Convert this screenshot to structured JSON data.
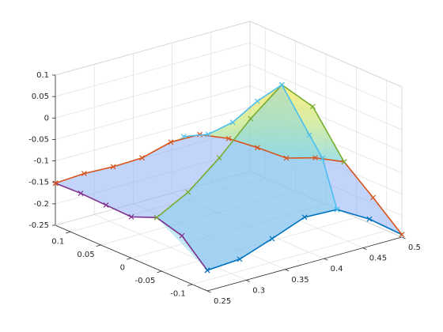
{
  "chart_data": {
    "type": "surface3d",
    "xlim": [
      0.25,
      0.5
    ],
    "ylim": [
      -0.125,
      0.125
    ],
    "zlim": [
      -0.25,
      0.1
    ],
    "xticks": [
      0.25,
      0.3,
      0.35,
      0.4,
      0.45,
      0.5
    ],
    "yticks": [
      -0.1,
      -0.05,
      0,
      0.05,
      0.1
    ],
    "zticks": [
      -0.25,
      -0.2,
      -0.15,
      -0.1,
      -0.05,
      0,
      0.05,
      0.1
    ],
    "grid": true,
    "series": [
      {
        "color": "#7e2f8e",
        "x": [
          0.25,
          0.25,
          0.25,
          0.25,
          0.25,
          0.25,
          0.25
        ],
        "y": [
          0.125,
          0.0833,
          0.0417,
          0,
          -0.0417,
          -0.0833,
          -0.125
        ],
        "z": [
          -0.152,
          -0.15,
          -0.152,
          -0.154,
          -0.13,
          -0.147,
          -0.202
        ]
      },
      {
        "color": "#0072bd",
        "x": [
          0.25,
          0.2917,
          0.3333,
          0.375,
          0.4167,
          0.4583,
          0.5
        ],
        "y": [
          -0.125,
          -0.125,
          -0.125,
          -0.125,
          -0.125,
          -0.125,
          -0.125
        ],
        "z": [
          -0.202,
          -0.197,
          -0.17,
          -0.141,
          -0.144,
          -0.187,
          -0.244
        ]
      },
      {
        "color": "#d95319",
        "x": [
          0.25,
          0.2708,
          0.2917,
          0.3125,
          0.3333,
          0.3542,
          0.375,
          0.3958,
          0.4167,
          0.4375,
          0.4583,
          0.4792,
          0.5
        ],
        "y": [
          0.125,
          0.1042,
          0.0833,
          0.0625,
          0.0417,
          0.0208,
          0,
          -0.0208,
          -0.0417,
          -0.0625,
          -0.0833,
          -0.1042,
          -0.125
        ],
        "z": [
          -0.152,
          -0.127,
          -0.109,
          -0.086,
          -0.047,
          -0.027,
          -0.034,
          -0.053,
          -0.075,
          -0.072,
          -0.079,
          -0.16,
          -0.244
        ]
      },
      {
        "color": "#77ac30",
        "x": [
          0.25,
          0.2925,
          0.335,
          0.3775,
          0.42,
          0.439,
          0.4583
        ],
        "y": [
          -0.0417,
          -0.039,
          -0.036,
          -0.033,
          -0.03,
          -0.0565,
          -0.0833
        ],
        "z": [
          -0.13,
          -0.094,
          -0.037,
          0.031,
          0.087,
          0.043,
          -0.079
        ]
      },
      {
        "color": "#4dbeee",
        "x": [
          0.3425,
          0.3619,
          0.3813,
          0.4006,
          0.42,
          0.4183,
          0.4175,
          0.4167
        ],
        "y": [
          0.0325,
          0.0169,
          0.0013,
          -0.0144,
          -0.03,
          -0.0775,
          -0.1,
          -0.125
        ],
        "z": [
          -0.033,
          -0.028,
          0,
          0.049,
          0.087,
          0,
          -0.04,
          -0.144
        ]
      }
    ]
  }
}
